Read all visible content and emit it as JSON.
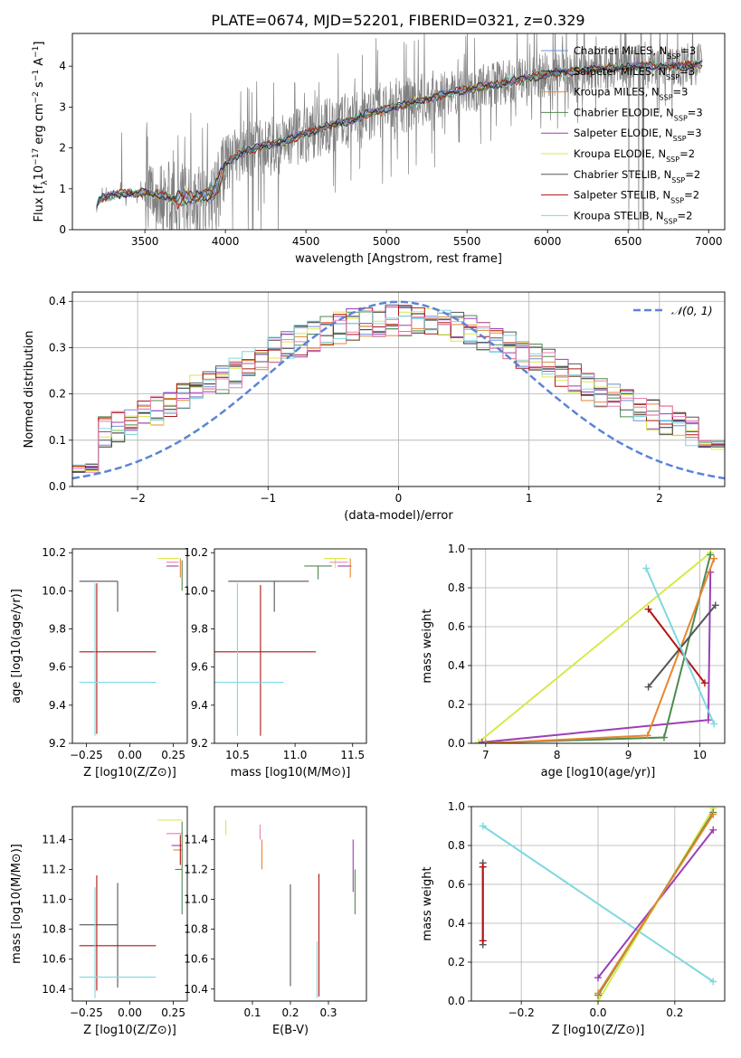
{
  "figure_title": "PLATE=0674, MJD=52201, FIBERID=0321, z=0.329",
  "colors": {
    "chabrier_miles": "#6f8fd8",
    "salpeter_miles": "#2b2b2b",
    "kroupa_miles": "#e8862e",
    "chabrier_elodie": "#4f8a4f",
    "salpeter_elodie": "#9b3fb5",
    "kroupa_elodie": "#d9e84a",
    "chabrier_stelib": "#555555",
    "salpeter_stelib": "#b01515",
    "kroupa_stelib": "#7fd8e0",
    "model_extra_pink": "#e87fb0",
    "data": "#808080",
    "gauss": "#5b84d6",
    "grid": "#b0b0b0"
  },
  "chart_data": [
    {
      "id": "spectrum",
      "type": "line",
      "title": "PLATE=0674, MJD=52201, FIBERID=0321, z=0.329",
      "xlabel": "wavelength [Angstrom, rest frame]",
      "ylabel": "Flux [f_λ 10^-17 erg cm^-2 s^-1 A^-1]",
      "ylabel_parts": [
        "Flux [f",
        "λ",
        "10",
        "−17",
        " erg cm",
        "−2",
        " s",
        "−1",
        " A",
        "−1",
        "]"
      ],
      "xlim": [
        3050,
        7100
      ],
      "ylim": [
        0,
        4.8
      ],
      "xticks": [
        3500,
        4000,
        4500,
        5000,
        5500,
        6000,
        6500,
        7000
      ],
      "yticks": [
        0,
        1,
        2,
        3,
        4
      ],
      "grid": false,
      "legend_position": "upper-right",
      "series": [
        {
          "name": "Chabrier MILES",
          "nssp": "3"
        },
        {
          "name": "Salpeter MILES",
          "nssp": "3"
        },
        {
          "name": "Kroupa MILES",
          "nssp": "3"
        },
        {
          "name": "Chabrier ELODIE",
          "nssp": "3"
        },
        {
          "name": "Salpeter ELODIE",
          "nssp": "3"
        },
        {
          "name": "Kroupa ELODIE",
          "nssp": "2"
        },
        {
          "name": "Chabrier STELIB",
          "nssp": "2"
        },
        {
          "name": "Salpeter STELIB",
          "nssp": "2"
        },
        {
          "name": "Kroupa STELIB",
          "nssp": "2"
        }
      ],
      "model_continuum": {
        "x": [
          3200,
          3220,
          3300,
          3400,
          3500,
          3600,
          3700,
          3800,
          3900,
          3950,
          4000,
          4100,
          4200,
          4300,
          4400,
          4500,
          4600,
          4700,
          4800,
          4900,
          5000,
          5200,
          5400,
          5600,
          5800,
          6000,
          6200,
          6400,
          6600,
          6800,
          6950
        ],
        "y": [
          0.55,
          0.75,
          0.85,
          0.9,
          0.9,
          0.85,
          0.75,
          0.8,
          0.85,
          1.05,
          1.6,
          1.9,
          2.0,
          2.1,
          2.2,
          2.35,
          2.5,
          2.6,
          2.7,
          2.85,
          2.95,
          3.15,
          3.35,
          3.5,
          3.65,
          3.8,
          3.9,
          3.95,
          4.0,
          4.0,
          4.05
        ]
      }
    },
    {
      "id": "residuals",
      "type": "line",
      "xlabel": "(data-model)/error",
      "ylabel": "Normed distribution",
      "xlim": [
        -2.5,
        2.5
      ],
      "ylim": [
        0,
        0.42
      ],
      "xticks": [
        -2,
        -1,
        0,
        1,
        2
      ],
      "xtick_labels": [
        "−2",
        "−1",
        "0",
        "1",
        "2"
      ],
      "yticks": [
        0.0,
        0.1,
        0.2,
        0.3,
        0.4
      ],
      "ytick_labels": [
        "0.0",
        "0.1",
        "0.2",
        "0.3",
        "0.4"
      ],
      "grid": true,
      "legend": [
        {
          "name": "𝒩(0, 1)",
          "style": "dashed"
        }
      ],
      "legend_position": "upper-right",
      "bin_width": 0.1
    },
    {
      "id": "age_vs_z",
      "type": "scatter",
      "xlabel": "Z [log10(Z/Z⊙)]",
      "ylabel": "age [log10(age/yr)]",
      "xlim": [
        -0.33,
        0.33
      ],
      "ylim": [
        9.2,
        10.22
      ],
      "xticks": [
        -0.25,
        0.0,
        0.25
      ],
      "xtick_labels": [
        "−0.25",
        "0.00",
        "0.25"
      ],
      "yticks": [
        9.2,
        9.4,
        9.6,
        9.8,
        10.0,
        10.2
      ],
      "ytick_labels": [
        "9.2",
        "9.4",
        "9.6",
        "9.8",
        "10.0",
        "10.2"
      ],
      "grid": false,
      "points": [
        {
          "model": "chabrier_stelib",
          "x": -0.07,
          "xerr": [
            0.22,
            0.0
          ],
          "y": 10.05,
          "yerr": [
            0.16,
            0.0
          ]
        },
        {
          "model": "salpeter_stelib",
          "x": -0.07,
          "xerr": [
            0.22,
            0.22
          ],
          "y": 9.68,
          "yerr": [
            0.0,
            0.0
          ]
        },
        {
          "model": "salpeter_stelib",
          "x": -0.19,
          "xerr": [
            0.0,
            0.0
          ],
          "y": 9.68,
          "yerr": [
            0.43,
            0.36
          ]
        },
        {
          "model": "kroupa_stelib",
          "x": -0.07,
          "xerr": [
            0.22,
            0.22
          ],
          "y": 9.52,
          "yerr": [
            0.0,
            0.0
          ]
        },
        {
          "model": "kroupa_stelib",
          "x": -0.2,
          "xerr": [
            0.0,
            0.0
          ],
          "y": 9.52,
          "yerr": [
            0.28,
            0.52
          ]
        },
        {
          "model": "kroupa_elodie",
          "x": 0.22,
          "xerr": [
            0.06,
            0.06
          ],
          "y": 10.17,
          "yerr": [
            0.0,
            0.0
          ]
        },
        {
          "model": "model_extra_pink",
          "x": 0.24,
          "xerr": [
            0.03,
            0.04
          ],
          "y": 10.15,
          "yerr": [
            0.0,
            0.0
          ]
        },
        {
          "model": "salpeter_elodie",
          "x": 0.24,
          "xerr": [
            0.03,
            0.04
          ],
          "y": 10.13,
          "yerr": [
            0.0,
            0.0
          ]
        },
        {
          "model": "kroupa_miles",
          "x": 0.29,
          "xerr": [
            0.0,
            0.0
          ],
          "y": 10.12,
          "yerr": [
            0.05,
            0.05
          ]
        },
        {
          "model": "chabrier_elodie",
          "x": 0.3,
          "xerr": [
            0.0,
            0.0
          ],
          "y": 10.1,
          "yerr": [
            0.1,
            0.06
          ]
        }
      ]
    },
    {
      "id": "age_vs_mass",
      "type": "scatter",
      "xlabel": "mass [log10(M/M⊙)]",
      "xlim": [
        10.3,
        11.62
      ],
      "ylim": [
        9.2,
        10.22
      ],
      "xticks": [
        10.5,
        11.0,
        11.5
      ],
      "xtick_labels": [
        "10.5",
        "11.0",
        "11.5"
      ],
      "yticks": [
        9.2,
        9.4,
        9.6,
        9.8,
        10.0,
        10.2
      ],
      "ytick_labels": [
        "9.2",
        "9.4",
        "9.6",
        "9.8",
        "10.0",
        "10.2"
      ],
      "grid": false,
      "points": [
        {
          "model": "chabrier_stelib",
          "x": 10.82,
          "xerr": [
            0.4,
            0.3
          ],
          "y": 10.05,
          "yerr": [
            0.16,
            0.0
          ]
        },
        {
          "model": "salpeter_stelib",
          "x": 10.7,
          "xerr": [
            0.4,
            0.48
          ],
          "y": 9.68,
          "yerr": [
            0.44,
            0.35
          ]
        },
        {
          "model": "kroupa_stelib",
          "x": 10.5,
          "xerr": [
            0.2,
            0.4
          ],
          "y": 9.52,
          "yerr": [
            0.28,
            0.52
          ]
        },
        {
          "model": "chabrier_elodie",
          "x": 11.2,
          "xerr": [
            0.12,
            0.12
          ],
          "y": 10.13,
          "yerr": [
            0.07,
            0.0
          ]
        },
        {
          "model": "kroupa_elodie",
          "x": 11.35,
          "xerr": [
            0.1,
            0.1
          ],
          "y": 10.17,
          "yerr": [
            0.05,
            0.0
          ]
        },
        {
          "model": "model_extra_pink",
          "x": 11.4,
          "xerr": [
            0.1,
            0.06
          ],
          "y": 10.15,
          "yerr": [
            0.0,
            0.0
          ]
        },
        {
          "model": "salpeter_elodie",
          "x": 11.44,
          "xerr": [
            0.07,
            0.05
          ],
          "y": 10.13,
          "yerr": [
            0.0,
            0.0
          ]
        },
        {
          "model": "kroupa_miles",
          "x": 11.48,
          "xerr": [
            0.0,
            0.0
          ],
          "y": 10.12,
          "yerr": [
            0.05,
            0.05
          ]
        }
      ]
    },
    {
      "id": "weight_vs_age",
      "type": "line",
      "xlabel": "age [log10(age/yr)]",
      "ylabel": "mass weight",
      "xlim": [
        6.8,
        10.35
      ],
      "ylim": [
        0,
        1
      ],
      "xticks": [
        7,
        8,
        9,
        10
      ],
      "yticks": [
        0.0,
        0.2,
        0.4,
        0.6,
        0.8,
        1.0
      ],
      "ytick_labels": [
        "0.0",
        "0.2",
        "0.4",
        "0.6",
        "0.8",
        "1.0"
      ],
      "grid": true,
      "series": [
        {
          "model": "kroupa_elodie",
          "x": [
            6.9,
            10.15
          ],
          "y": [
            0.005,
            0.98
          ]
        },
        {
          "model": "salpeter_elodie",
          "x": [
            6.95,
            10.12,
            10.15
          ],
          "y": [
            0.005,
            0.12,
            0.88
          ]
        },
        {
          "model": "chabrier_elodie",
          "x": [
            7.0,
            9.5,
            10.15
          ],
          "y": [
            0.002,
            0.03,
            0.97
          ]
        },
        {
          "model": "kroupa_miles",
          "x": [
            7.0,
            9.27,
            10.2
          ],
          "y": [
            0.0,
            0.04,
            0.95
          ]
        },
        {
          "model": "chabrier_stelib",
          "x": [
            9.28,
            10.22
          ],
          "y": [
            0.29,
            0.71
          ]
        },
        {
          "model": "salpeter_stelib",
          "x": [
            9.28,
            10.07
          ],
          "y": [
            0.69,
            0.31
          ]
        },
        {
          "model": "kroupa_stelib",
          "x": [
            9.25,
            10.2
          ],
          "y": [
            0.9,
            0.1
          ]
        }
      ]
    },
    {
      "id": "mass_vs_z",
      "type": "scatter",
      "xlabel": "Z [log10(Z/Z⊙)]",
      "ylabel": "mass [log10(M/M⊙)]",
      "xlim": [
        -0.33,
        0.33
      ],
      "ylim": [
        10.32,
        11.62
      ],
      "xticks": [
        -0.25,
        0.0,
        0.25
      ],
      "xtick_labels": [
        "−0.25",
        "0.00",
        "0.25"
      ],
      "yticks": [
        10.4,
        10.6,
        10.8,
        11.0,
        11.2,
        11.4
      ],
      "ytick_labels": [
        "10.4",
        "10.6",
        "10.8",
        "11.0",
        "11.2",
        "11.4"
      ],
      "grid": false,
      "points": [
        {
          "model": "chabrier_stelib",
          "x": -0.07,
          "xerr": [
            0.22,
            0.0
          ],
          "y": 10.83,
          "yerr": [
            0.42,
            0.28
          ]
        },
        {
          "model": "salpeter_stelib",
          "x": -0.07,
          "xerr": [
            0.22,
            0.22
          ],
          "y": 10.69,
          "yerr": [
            0.0,
            0.0
          ]
        },
        {
          "model": "salpeter_stelib",
          "x": -0.19,
          "xerr": [
            0.0,
            0.0
          ],
          "y": 10.69,
          "yerr": [
            0.3,
            0.47
          ]
        },
        {
          "model": "kroupa_stelib",
          "x": -0.07,
          "xerr": [
            0.22,
            0.22
          ],
          "y": 10.48,
          "yerr": [
            0.0,
            0.0
          ]
        },
        {
          "model": "kroupa_stelib",
          "x": -0.2,
          "xerr": [
            0.0,
            0.0
          ],
          "y": 10.48,
          "yerr": [
            0.14,
            0.6
          ]
        },
        {
          "model": "kroupa_elodie",
          "x": 0.22,
          "xerr": [
            0.06,
            0.08
          ],
          "y": 11.53,
          "yerr": [
            0.0,
            0.0
          ]
        },
        {
          "model": "model_extra_pink",
          "x": 0.24,
          "xerr": [
            0.03,
            0.06
          ],
          "y": 11.44,
          "yerr": [
            0.0,
            0.0
          ]
        },
        {
          "model": "salpeter_elodie",
          "x": 0.26,
          "xerr": [
            0.02,
            0.04
          ],
          "y": 11.36,
          "yerr": [
            0.0,
            0.0
          ]
        },
        {
          "model": "kroupa_miles",
          "x": 0.27,
          "xerr": [
            0.02,
            0.03
          ],
          "y": 11.33,
          "yerr": [
            0.0,
            0.0
          ]
        },
        {
          "model": "chabrier_elodie",
          "x": 0.28,
          "xerr": [
            0.02,
            0.02
          ],
          "y": 11.2,
          "yerr": [
            0.0,
            0.0
          ]
        },
        {
          "model": "chabrier_elodie",
          "x": 0.3,
          "xerr": [
            0.0,
            0.0
          ],
          "y": 11.2,
          "yerr": [
            0.3,
            0.32
          ]
        },
        {
          "model": "salpeter_stelib",
          "x": 0.29,
          "xerr": [
            0.0,
            0.0
          ],
          "y": 11.33,
          "yerr": [
            0.1,
            0.1
          ]
        }
      ]
    },
    {
      "id": "mass_vs_ebv",
      "type": "scatter",
      "xlabel": "E(B-V)",
      "xlim": [
        0.0,
        0.4
      ],
      "ylim": [
        10.32,
        11.62
      ],
      "xticks": [
        0.1,
        0.2,
        0.3
      ],
      "xtick_labels": [
        "0.1",
        "0.2",
        "0.3"
      ],
      "yticks": [
        10.4,
        10.6,
        10.8,
        11.0,
        11.2,
        11.4
      ],
      "ytick_labels": [
        "10.4",
        "10.6",
        "10.8",
        "11.0",
        "11.2",
        "11.4"
      ],
      "grid": false,
      "points": [
        {
          "model": "kroupa_elodie",
          "x": 0.03,
          "y": 11.48,
          "yerr": [
            0.05,
            0.05
          ]
        },
        {
          "model": "model_extra_pink",
          "x": 0.12,
          "y": 11.45,
          "yerr": [
            0.05,
            0.05
          ]
        },
        {
          "model": "kroupa_miles",
          "x": 0.125,
          "y": 11.3,
          "yerr": [
            0.1,
            0.1
          ]
        },
        {
          "model": "chabrier_stelib",
          "x": 0.2,
          "y": 10.75,
          "yerr": [
            0.33,
            0.35
          ]
        },
        {
          "model": "salpeter_stelib",
          "x": 0.275,
          "y": 10.8,
          "yerr": [
            0.45,
            0.37
          ]
        },
        {
          "model": "kroupa_stelib",
          "x": 0.27,
          "y": 10.52,
          "yerr": [
            0.18,
            0.2
          ]
        },
        {
          "model": "salpeter_elodie",
          "x": 0.365,
          "y": 11.2,
          "yerr": [
            0.15,
            0.2
          ]
        },
        {
          "model": "chabrier_elodie",
          "x": 0.37,
          "y": 11.05,
          "yerr": [
            0.15,
            0.15
          ]
        }
      ]
    },
    {
      "id": "weight_vs_z",
      "type": "line",
      "xlabel": "Z [log10(Z/Z⊙)]",
      "ylabel": "mass weight",
      "xlim": [
        -0.33,
        0.33
      ],
      "ylim": [
        0,
        1
      ],
      "xticks": [
        -0.2,
        0.0,
        0.2
      ],
      "xtick_labels": [
        "−0.2",
        "0.0",
        "0.2"
      ],
      "yticks": [
        0.0,
        0.2,
        0.4,
        0.6,
        0.8,
        1.0
      ],
      "ytick_labels": [
        "0.0",
        "0.2",
        "0.4",
        "0.6",
        "0.8",
        "1.0"
      ],
      "grid": true,
      "series": [
        {
          "model": "kroupa_stelib",
          "x": [
            -0.3,
            0.3
          ],
          "y": [
            0.9,
            0.1
          ]
        },
        {
          "model": "salpeter_elodie",
          "x": [
            0.0,
            0.3
          ],
          "y": [
            0.12,
            0.88
          ]
        },
        {
          "model": "kroupa_elodie",
          "x": [
            0.0,
            0.3
          ],
          "y": [
            0.0,
            0.99
          ]
        },
        {
          "model": "chabrier_elodie",
          "x": [
            0.0,
            0.3
          ],
          "y": [
            0.03,
            0.97
          ]
        },
        {
          "model": "kroupa_miles",
          "x": [
            0.0,
            0.3
          ],
          "y": [
            0.04,
            0.96
          ]
        },
        {
          "model": "chabrier_stelib",
          "x": [
            -0.3,
            -0.3
          ],
          "y": [
            0.29,
            0.71
          ]
        },
        {
          "model": "salpeter_stelib",
          "x": [
            -0.3,
            -0.3
          ],
          "y": [
            0.31,
            0.69
          ]
        }
      ]
    }
  ]
}
